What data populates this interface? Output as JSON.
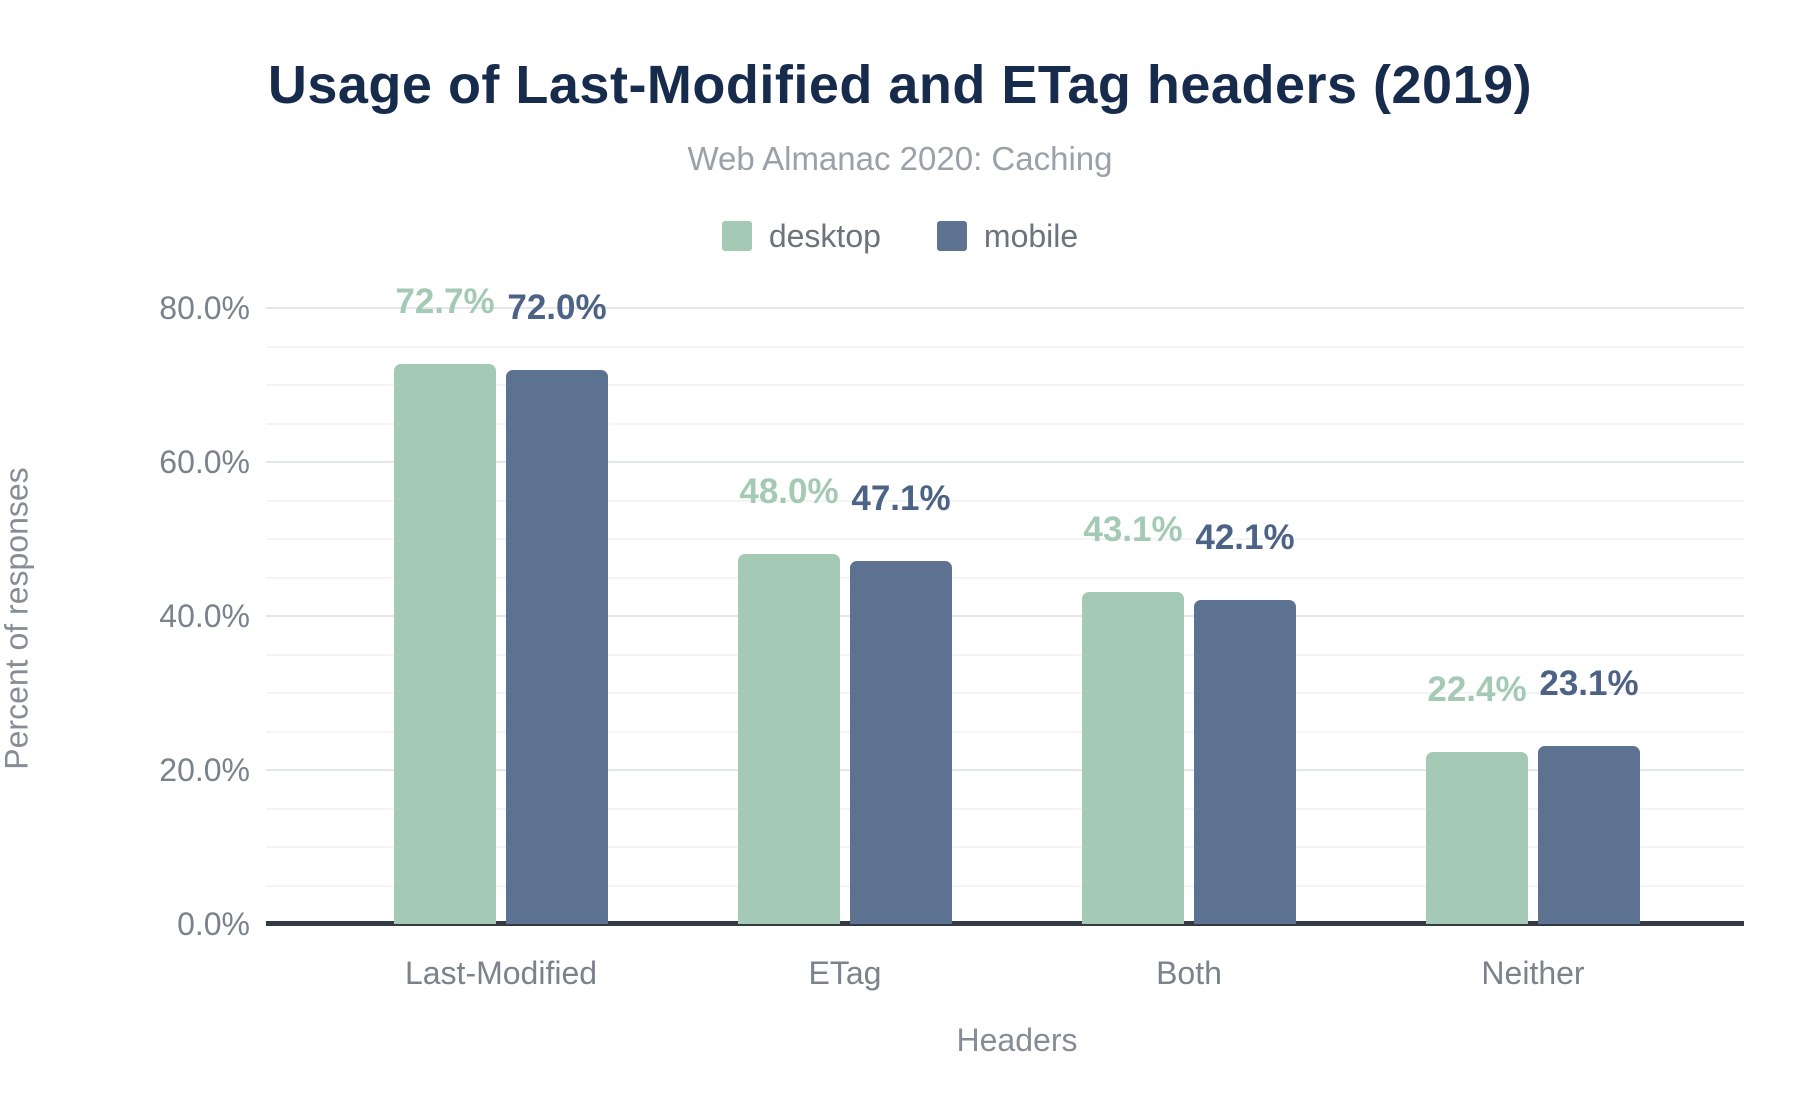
{
  "chart_data": {
    "type": "bar",
    "title": "Usage of Last-Modified and ETag headers (2019)",
    "subtitle": "Web Almanac 2020: Caching",
    "xlabel": "Headers",
    "ylabel": "Percent of responses",
    "categories": [
      "Last-Modified",
      "ETag",
      "Both",
      "Neither"
    ],
    "series": [
      {
        "name": "desktop",
        "values": [
          72.7,
          48.0,
          43.1,
          22.4
        ],
        "color": "#a4cab5",
        "label_color": "#a4cab5"
      },
      {
        "name": "mobile",
        "values": [
          72.0,
          47.1,
          42.1,
          23.1
        ],
        "color": "#5d7190",
        "label_color": "#4d6385"
      }
    ],
    "value_labels": [
      [
        "72.7%",
        "72.0%"
      ],
      [
        "48.0%",
        "47.1%"
      ],
      [
        "43.1%",
        "42.1%"
      ],
      [
        "22.4%",
        "23.1%"
      ]
    ],
    "y_ticks": [
      "0.0%",
      "20.0%",
      "40.0%",
      "60.0%",
      "80.0%"
    ],
    "y_tick_values": [
      0,
      20,
      40,
      60,
      80
    ],
    "ylim": [
      0,
      80
    ],
    "grid": {
      "major_step": 20,
      "minor_step": 5,
      "visible": true
    },
    "legend_position": "top",
    "colors": {
      "title": "#172b4d",
      "subtitle_text": "#9ba1a8",
      "tick_text": "#7b828c",
      "axis_title_text": "#868d96",
      "legend_text": "#6d737c",
      "axis_line": "#343a43",
      "grid_major": "#e4e7ea",
      "grid_minor": "#f3f4f6",
      "background": "#ffffff"
    }
  }
}
